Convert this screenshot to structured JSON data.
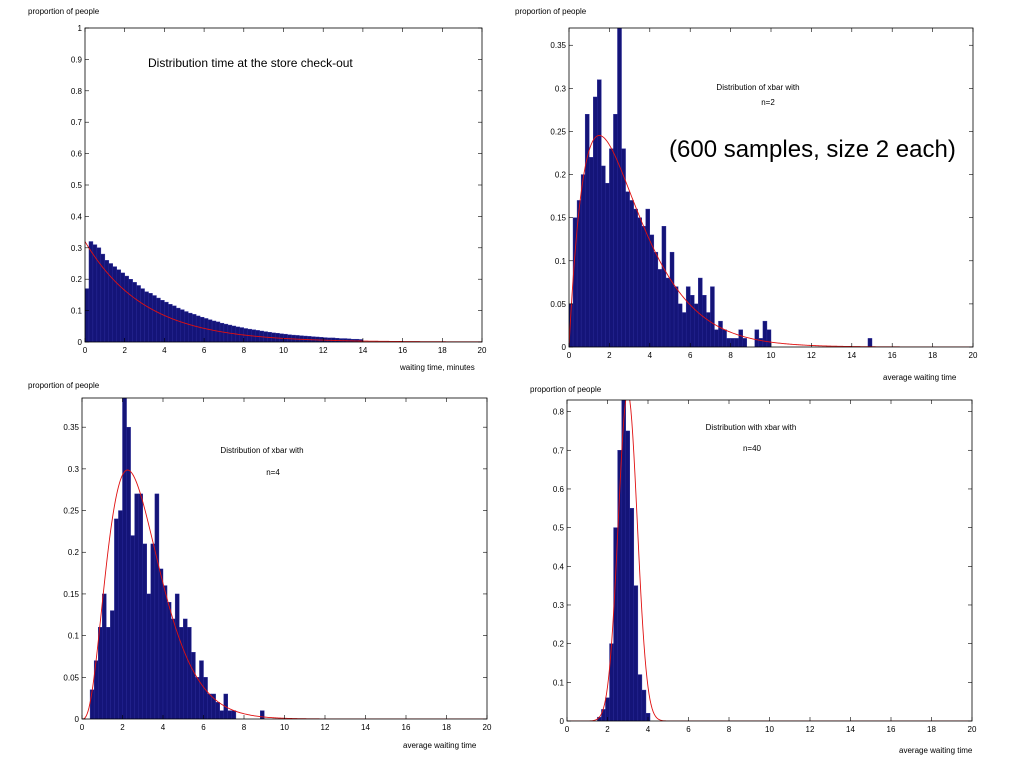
{
  "colors": {
    "bar": "#141478",
    "bar_edge": "#2a2a9a",
    "curve": "#e01010",
    "axis": "#000000"
  },
  "chart_data": [
    {
      "type": "bar",
      "ylabel": "proportion of people",
      "xlabel": "waiting time, minutes",
      "annotations": [
        "Distribution time at the store check-out"
      ],
      "xlim": [
        0,
        20
      ],
      "ylim": [
        0,
        1
      ],
      "x_ticks": [
        0,
        2,
        4,
        6,
        8,
        10,
        12,
        14,
        16,
        18,
        20
      ],
      "x_tick_labels": [
        "0",
        "2",
        "4",
        "6",
        "8",
        "10",
        "12",
        "14",
        "16",
        "18",
        "20"
      ],
      "y_ticks": [
        0,
        0.1,
        0.2,
        0.3,
        0.4,
        0.5,
        0.6,
        0.7,
        0.8,
        0.9,
        1
      ],
      "y_tick_labels": [
        "0",
        "0.1",
        "0.2",
        "0.3",
        "0.4",
        "0.5",
        "0.6",
        "0.7",
        "0.8",
        "0.9",
        "1"
      ],
      "bins": {
        "start": 0,
        "width": 0.2
      },
      "values": [
        0.17,
        0.32,
        0.31,
        0.3,
        0.28,
        0.26,
        0.25,
        0.24,
        0.23,
        0.22,
        0.21,
        0.2,
        0.19,
        0.18,
        0.17,
        0.16,
        0.155,
        0.148,
        0.14,
        0.133,
        0.127,
        0.12,
        0.115,
        0.108,
        0.103,
        0.097,
        0.092,
        0.088,
        0.083,
        0.079,
        0.075,
        0.071,
        0.067,
        0.064,
        0.06,
        0.057,
        0.054,
        0.051,
        0.048,
        0.046,
        0.043,
        0.041,
        0.039,
        0.037,
        0.035,
        0.033,
        0.031,
        0.029,
        0.028,
        0.026,
        0.025,
        0.023,
        0.022,
        0.021,
        0.02,
        0.019,
        0.018,
        0.017,
        0.016,
        0.015,
        0.014,
        0.013,
        0.013,
        0.012,
        0.011,
        0.011,
        0.01,
        0.009,
        0.009,
        0.008
      ],
      "curve": {
        "kind": "exponential",
        "amplitude": 0.32,
        "rate": 0.333
      }
    },
    {
      "type": "bar",
      "ylabel": "proportion of people",
      "xlabel": "average waiting time",
      "annotations": [
        "Distribution of xbar with",
        "n=2",
        "(600 samples, size 2 each)"
      ],
      "xlim": [
        0,
        20
      ],
      "ylim": [
        0,
        0.37
      ],
      "x_ticks": [
        0,
        2,
        4,
        6,
        8,
        10,
        12,
        14,
        16,
        18,
        20
      ],
      "x_tick_labels": [
        "0",
        "2",
        "4",
        "6",
        "8",
        "10",
        "12",
        "14",
        "16",
        "18",
        "20"
      ],
      "y_ticks": [
        0,
        0.05,
        0.1,
        0.15,
        0.2,
        0.25,
        0.3,
        0.35
      ],
      "y_tick_labels": [
        "0",
        "0.05",
        "0.1",
        "0.15",
        "0.2",
        "0.25",
        "0.3",
        "0.35"
      ],
      "bins": {
        "start": 0,
        "width": 0.2
      },
      "values": [
        0.05,
        0.15,
        0.17,
        0.2,
        0.27,
        0.22,
        0.29,
        0.31,
        0.21,
        0.19,
        0.23,
        0.27,
        0.37,
        0.23,
        0.18,
        0.17,
        0.16,
        0.15,
        0.14,
        0.16,
        0.13,
        0.11,
        0.09,
        0.14,
        0.08,
        0.11,
        0.07,
        0.05,
        0.04,
        0.07,
        0.06,
        0.05,
        0.08,
        0.06,
        0.04,
        0.07,
        0.02,
        0.03,
        0.02,
        0.01,
        0.01,
        0.01,
        0.02,
        0.01,
        0.0,
        0.0,
        0.02,
        0.01,
        0.03,
        0.02,
        0.0,
        0.0,
        0.0,
        0.0,
        0.0,
        0.0,
        0.0,
        0.0,
        0.0,
        0.0,
        0.0,
        0.0,
        0.0,
        0.0,
        0.0,
        0.0,
        0.0,
        0.0,
        0.0,
        0.0,
        0.0,
        0.0,
        0.0,
        0.0,
        0.01
      ],
      "curve": {
        "kind": "gamma",
        "shape": 2,
        "rate": 0.667
      }
    },
    {
      "type": "bar",
      "ylabel": "proportion of people",
      "xlabel": "average waiting time",
      "annotations": [
        "Distribution of xbar with",
        "n=4"
      ],
      "xlim": [
        0,
        20
      ],
      "ylim": [
        0,
        0.385
      ],
      "x_ticks": [
        0,
        2,
        4,
        6,
        8,
        10,
        12,
        14,
        16,
        18,
        20
      ],
      "x_tick_labels": [
        "0",
        "2",
        "4",
        "6",
        "8",
        "10",
        "12",
        "14",
        "16",
        "18",
        "20"
      ],
      "y_ticks": [
        0,
        0.05,
        0.1,
        0.15,
        0.2,
        0.25,
        0.3,
        0.35
      ],
      "y_tick_labels": [
        "0",
        "0.05",
        "0.1",
        "0.15",
        "0.2",
        "0.25",
        "0.3",
        "0.35"
      ],
      "bins": {
        "start": 0.4,
        "width": 0.2
      },
      "values": [
        0.035,
        0.07,
        0.11,
        0.15,
        0.11,
        0.13,
        0.24,
        0.25,
        0.39,
        0.35,
        0.22,
        0.27,
        0.27,
        0.21,
        0.15,
        0.21,
        0.27,
        0.18,
        0.16,
        0.14,
        0.12,
        0.15,
        0.11,
        0.12,
        0.11,
        0.08,
        0.05,
        0.07,
        0.05,
        0.03,
        0.03,
        0.02,
        0.01,
        0.03,
        0.01,
        0.01,
        0.0,
        0.0,
        0.0,
        0.0,
        0.0,
        0.0,
        0.01
      ],
      "curve": {
        "kind": "gamma",
        "shape": 4,
        "rate": 1.333
      }
    },
    {
      "type": "bar",
      "ylabel": "proportion of people",
      "xlabel": "average waiting time",
      "annotations": [
        "Distribution with xbar with",
        "n=40"
      ],
      "xlim": [
        0,
        20
      ],
      "ylim": [
        0,
        0.83
      ],
      "x_ticks": [
        0,
        2,
        4,
        6,
        8,
        10,
        12,
        14,
        16,
        18,
        20
      ],
      "x_tick_labels": [
        "0",
        "2",
        "4",
        "6",
        "8",
        "10",
        "12",
        "14",
        "16",
        "18",
        "20"
      ],
      "y_ticks": [
        0,
        0.1,
        0.2,
        0.3,
        0.4,
        0.5,
        0.6,
        0.7,
        0.8
      ],
      "y_tick_labels": [
        "0",
        "0.1",
        "0.2",
        "0.3",
        "0.4",
        "0.5",
        "0.6",
        "0.7",
        "0.8"
      ],
      "bins": {
        "start": 1.5,
        "width": 0.2
      },
      "values": [
        0.01,
        0.03,
        0.06,
        0.2,
        0.5,
        0.7,
        0.85,
        0.75,
        0.55,
        0.35,
        0.12,
        0.08,
        0.02
      ],
      "curve": {
        "kind": "normal",
        "mean": 3.0,
        "sd": 0.47
      }
    }
  ]
}
